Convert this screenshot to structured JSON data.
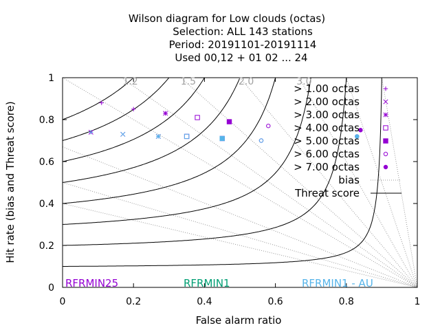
{
  "chart_data": {
    "type": "scatter",
    "title_lines": [
      "Wilson diagram  for Low clouds (octas)",
      "Selection: ALL    143 stations",
      "Period: 20191101-20191114",
      "Used  00,12  + 01 02 ... 24"
    ],
    "xlabel": "False alarm ratio",
    "ylabel": "Hit rate (bias and Threat score)",
    "xlim": [
      0,
      1
    ],
    "ylim": [
      0,
      1
    ],
    "xticks": [
      "0",
      "0.2",
      "0.4",
      "0.6",
      "0.8",
      "1"
    ],
    "yticks": [
      "0",
      "0.2",
      "0.4",
      "0.6",
      "0.8",
      "1"
    ],
    "bias_labels": [
      "1.2",
      "1.5",
      "2.0",
      "3.0"
    ],
    "bias_values": [
      0.4,
      0.5,
      0.67,
      1.0,
      1.2,
      1.5,
      2.0,
      3.0,
      5.0,
      10.0
    ],
    "threat_values": [
      0.1,
      0.2,
      0.3,
      0.4,
      0.5,
      0.6,
      0.7,
      0.8
    ],
    "legend_position": "top-right",
    "series": [
      {
        "name": "> 1.00 octas",
        "marker": "plus",
        "color": "#9400d3",
        "points": [
          {
            "x": 0.11,
            "y": 0.88
          },
          {
            "x": 0.2,
            "y": 0.85
          },
          {
            "x": 0.29,
            "y": 0.83
          }
        ]
      },
      {
        "name": "> 2.00 octas",
        "marker": "cross",
        "color": "#9400d3",
        "points": [
          {
            "x": 0.08,
            "y": 0.74
          },
          {
            "x": 0.17,
            "y": 0.73
          },
          {
            "x": 0.27,
            "y": 0.72
          }
        ]
      },
      {
        "name": "> 3.00 octas",
        "marker": "star",
        "color": "#9400d3",
        "points": [
          {
            "x": 0.29,
            "y": 0.83
          }
        ]
      },
      {
        "name": "> 4.00 octas",
        "marker": "square",
        "color": "#9400d3",
        "points": [
          {
            "x": 0.38,
            "y": 0.81
          },
          {
            "x": 0.35,
            "y": 0.72
          }
        ]
      },
      {
        "name": "> 5.00 octas",
        "marker": "filled-square",
        "color": "#9400d3",
        "points": [
          {
            "x": 0.47,
            "y": 0.79
          },
          {
            "x": 0.45,
            "y": 0.71
          }
        ]
      },
      {
        "name": "> 6.00 octas",
        "marker": "circle",
        "color": "#9400d3",
        "points": [
          {
            "x": 0.58,
            "y": 0.77
          },
          {
            "x": 0.56,
            "y": 0.7
          }
        ]
      },
      {
        "name": "> 7.00 octas",
        "marker": "filled-circle",
        "color": "#9400d3",
        "points": [
          {
            "x": 0.84,
            "y": 0.75
          },
          {
            "x": 0.83,
            "y": 0.72
          }
        ]
      },
      {
        "name": "bias",
        "marker": "dotted-line",
        "color": "#888888",
        "points": []
      },
      {
        "name": "Threat score",
        "marker": "solid-line",
        "color": "#000000",
        "points": []
      }
    ],
    "cyan_points": [
      {
        "x": 0.08,
        "y": 0.74,
        "marker": "plus"
      },
      {
        "x": 0.17,
        "y": 0.73,
        "marker": "cross"
      },
      {
        "x": 0.27,
        "y": 0.72,
        "marker": "star"
      },
      {
        "x": 0.35,
        "y": 0.72,
        "marker": "square"
      },
      {
        "x": 0.45,
        "y": 0.71,
        "marker": "filled-square"
      },
      {
        "x": 0.56,
        "y": 0.7,
        "marker": "circle"
      },
      {
        "x": 0.83,
        "y": 0.72,
        "marker": "filled-circle"
      }
    ],
    "colors": {
      "primary": "#9400d3",
      "secondary": "#009e73",
      "tertiary": "#56b4e9"
    },
    "experiments": [
      {
        "label": "RFRMIN25",
        "color": "#9400d3"
      },
      {
        "label": "RFRMIN1",
        "color": "#009e73"
      },
      {
        "label": "RFRMIN1 - AU",
        "color": "#56b4e9"
      }
    ]
  }
}
